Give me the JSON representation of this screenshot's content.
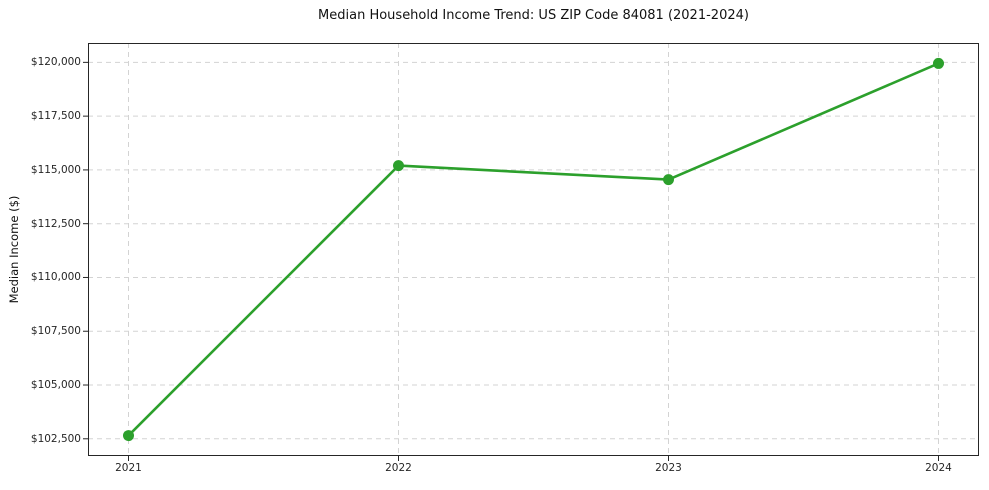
{
  "chart_data": {
    "type": "line",
    "title": "Median Household Income Trend: US ZIP Code 84081 (2021-2024)",
    "xlabel": "",
    "ylabel": "Median Income ($)",
    "x": [
      2021,
      2022,
      2023,
      2024
    ],
    "series": [
      {
        "name": "Median Household Income",
        "values": [
          102650,
          115200,
          114550,
          119950
        ]
      }
    ],
    "x_ticks": [
      2021,
      2022,
      2023,
      2024
    ],
    "x_tick_labels": [
      "2021",
      "2022",
      "2023",
      "2024"
    ],
    "y_ticks": [
      102500,
      105000,
      107500,
      110000,
      112500,
      115000,
      117500,
      120000
    ],
    "y_tick_labels": [
      "$102,500",
      "$105,000",
      "$107,500",
      "$110,000",
      "$112,500",
      "$115,000",
      "$117,500",
      "$120,000"
    ],
    "xlim": [
      2020.85,
      2024.15
    ],
    "ylim": [
      101700,
      120900
    ],
    "grid": true,
    "legend_position": "none",
    "line_color": "#2ca02c",
    "marker_color": "#2ca02c",
    "grid_color": "#d3d3d3",
    "spine_color": "#262626",
    "background": "#ffffff"
  }
}
